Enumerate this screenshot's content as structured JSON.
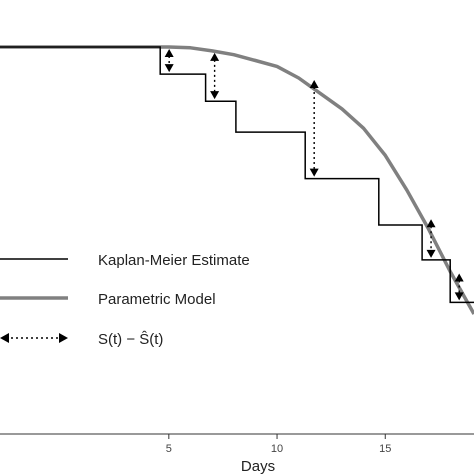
{
  "chart_data": {
    "type": "line",
    "title": "",
    "xlabel": "Days",
    "ylabel": "",
    "xlim": [
      -2.8,
      19.1
    ],
    "ylim": [
      0,
      1
    ],
    "x_ticks": [
      5,
      10,
      15
    ],
    "x_tick_labels": [
      "5",
      "10",
      "15"
    ],
    "grid": false,
    "legend_position": "left",
    "legend": {
      "km_label": "Kaplan-Meier Estimate",
      "param_label": "Parametric Model",
      "diff_label": "S(t) − Ŝ(t)"
    },
    "series": [
      {
        "name": "Kaplan-Meier Estimate",
        "kind": "step",
        "color": "#000000",
        "x": [
          -2.8,
          4.6,
          6.7,
          8.1,
          11.3,
          14.7,
          16.7,
          18.0
        ],
        "y": [
          1.0,
          0.93,
          0.86,
          0.78,
          0.66,
          0.54,
          0.45,
          0.34
        ]
      },
      {
        "name": "Parametric Model",
        "kind": "curve",
        "color": "#808080",
        "x": [
          -2.8,
          0,
          2,
          4,
          5,
          6,
          7,
          8,
          9,
          10,
          11,
          12,
          13,
          14,
          15,
          16,
          17,
          18,
          19.1
        ],
        "y": [
          1.0,
          1.0,
          1.0,
          1.0,
          1.0,
          0.998,
          0.99,
          0.98,
          0.965,
          0.95,
          0.92,
          0.88,
          0.84,
          0.79,
          0.72,
          0.63,
          0.53,
          0.42,
          0.31
        ]
      }
    ],
    "residuals": [
      {
        "t": 4.6,
        "s_km": 0.93,
        "s_param": 1.0
      },
      {
        "t": 6.7,
        "s_km": 0.86,
        "s_param": 0.99
      },
      {
        "t": 11.3,
        "s_km": 0.66,
        "s_param": 0.92
      },
      {
        "t": 16.7,
        "s_km": 0.45,
        "s_param": 0.56
      },
      {
        "t": 18.0,
        "s_km": 0.34,
        "s_param": 0.42
      }
    ]
  }
}
